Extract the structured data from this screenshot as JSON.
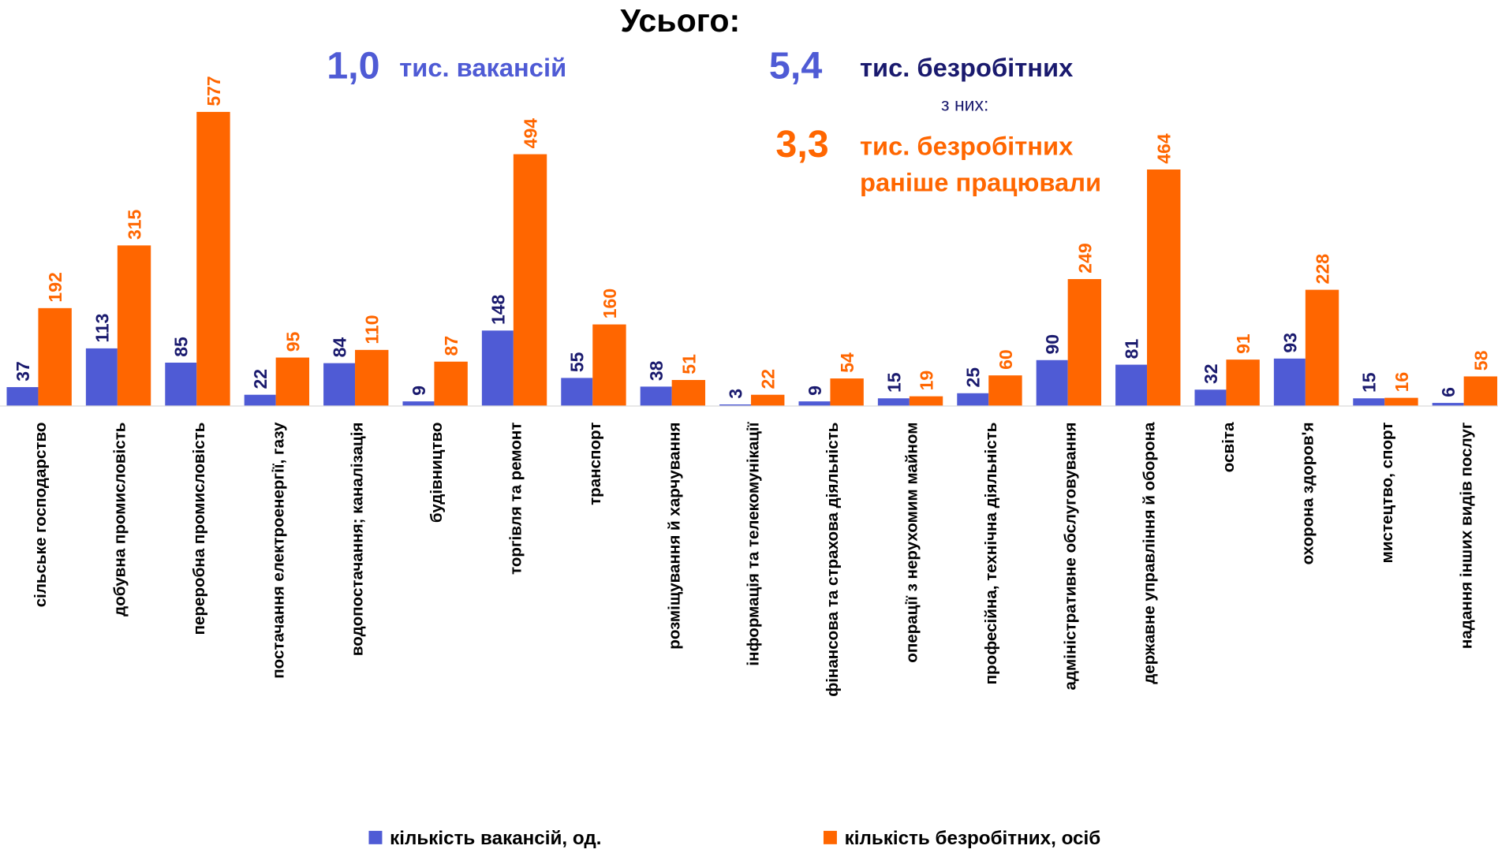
{
  "chart_data": {
    "type": "bar",
    "title": "Усього:",
    "annotations": [
      "1,0",
      "тис. вакансій",
      "5,4",
      "тис. безробітних",
      "з них:",
      "3,3",
      "тис. безробітних",
      "раніше працювали"
    ],
    "categories": [
      "сільське господарство",
      "добувна промисловість",
      "переробна промисловість",
      "постачання електроенергії, газу",
      "водопостачання; каналізація",
      "будівництво",
      "торгівля та ремонт",
      "транспорт",
      "розміщування й харчування",
      "інформація та телекомунікації",
      "фінансова та страхова діяльність",
      "операції з нерухомим майном",
      "професійна, технічна діяльність",
      "адміністративне обслуговування",
      "державне управління й оборона",
      "освіта",
      "охорона здоров'я",
      "мистецтво, спорт",
      "надання інших видів послуг"
    ],
    "series": [
      {
        "name": "кількість вакансій, од.",
        "color": "#4f5bd5",
        "values": [
          37,
          113,
          85,
          22,
          84,
          9,
          148,
          55,
          38,
          3,
          9,
          15,
          25,
          90,
          81,
          32,
          93,
          15,
          6
        ]
      },
      {
        "name": "кількість безробітних, осіб",
        "color": "#ff6600",
        "values": [
          192,
          315,
          577,
          95,
          110,
          87,
          494,
          160,
          51,
          22,
          54,
          19,
          60,
          249,
          464,
          91,
          228,
          16,
          58
        ]
      }
    ],
    "legend": "bottom"
  }
}
